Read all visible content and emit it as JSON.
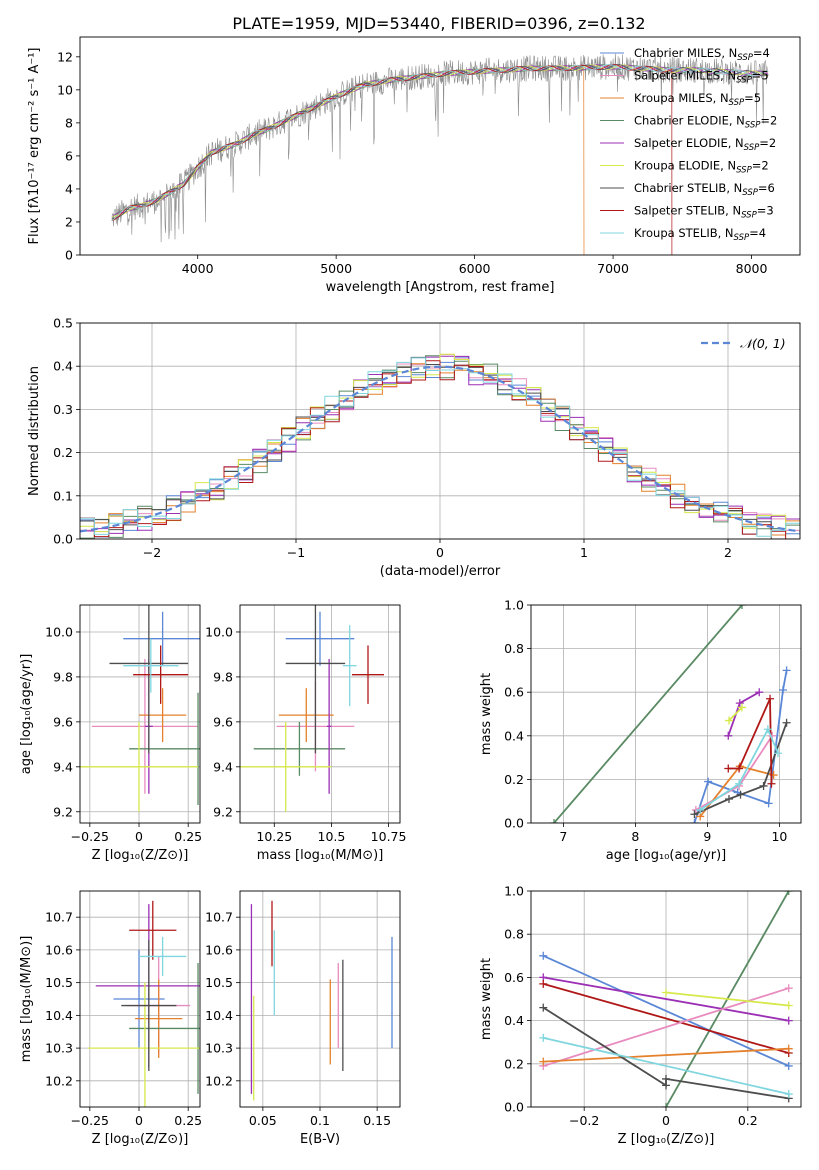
{
  "figure": {
    "title": "PLATE=1959, MJD=53440, FIBERID=0396, z=0.132"
  },
  "legend_spectrum": [
    {
      "label": "Chabrier MILES, N",
      "sub": "SSP",
      "tail": "=4",
      "color": "#5b87d6"
    },
    {
      "label": "Salpeter MILES, N",
      "sub": "SSP",
      "tail": "=5",
      "color": "#e88cbf"
    },
    {
      "label": "Kroupa MILES, N",
      "sub": "SSP",
      "tail": "=5",
      "color": "#e5802c"
    },
    {
      "label": "Chabrier ELODIE, N",
      "sub": "SSP",
      "tail": "=2",
      "color": "#5a8a63"
    },
    {
      "label": "Salpeter ELODIE, N",
      "sub": "SSP",
      "tail": "=2",
      "color": "#9b2fb5"
    },
    {
      "label": "Kroupa ELODIE, N",
      "sub": "SSP",
      "tail": "=2",
      "color": "#d6e84a"
    },
    {
      "label": "Chabrier STELIB, N",
      "sub": "SSP",
      "tail": "=6",
      "color": "#4d4d4d"
    },
    {
      "label": "Salpeter STELIB, N",
      "sub": "SSP",
      "tail": "=3",
      "color": "#b01818"
    },
    {
      "label": "Kroupa STELIB, N",
      "sub": "SSP",
      "tail": "=4",
      "color": "#7fd6de"
    }
  ],
  "chart_data": [
    {
      "id": "spectrum",
      "type": "line",
      "xlabel": "wavelength [Angstrom, rest frame]",
      "ylabel": "Flux [fλ10⁻¹⁷ erg cm⁻² s⁻¹ A⁻¹]",
      "xlim": [
        3150,
        8350
      ],
      "ylim": [
        0,
        13.2
      ],
      "xticks": [
        4000,
        5000,
        6000,
        7000,
        8000
      ],
      "yticks": [
        0,
        2,
        4,
        6,
        8,
        10,
        12
      ],
      "continuum": {
        "x": [
          3380,
          3500,
          3600,
          3700,
          3800,
          3900,
          4000,
          4100,
          4200,
          4300,
          4400,
          4500,
          4600,
          4800,
          5000,
          5200,
          5400,
          5600,
          5800,
          6000,
          6200,
          6400,
          6600,
          6800,
          7000,
          7200,
          7400,
          7600,
          7800,
          8000,
          8120
        ],
        "y": [
          2.2,
          2.8,
          3.0,
          3.3,
          3.8,
          4.3,
          5.3,
          6.2,
          6.5,
          6.8,
          7.3,
          7.6,
          8.0,
          8.8,
          9.6,
          10.3,
          10.6,
          10.8,
          11.0,
          11.1,
          11.2,
          11.3,
          11.3,
          11.35,
          11.4,
          11.3,
          11.2,
          11.2,
          11.1,
          11.0,
          11.0
        ]
      },
      "model_drops": [
        {
          "series": "Kroupa MILES",
          "x": 6790
        },
        {
          "series": "Salpeter STELIB",
          "x": 7425
        }
      ]
    },
    {
      "id": "residual_histogram",
      "type": "bar",
      "xlabel": "(data-model)/error",
      "ylabel": "Normed distribution",
      "xlim": [
        -2.5,
        2.5
      ],
      "ylim": [
        0,
        0.5
      ],
      "xticks": [
        -2,
        -1,
        0,
        1,
        2
      ],
      "yticks": [
        0.0,
        0.1,
        0.2,
        0.3,
        0.4,
        0.5
      ],
      "bin_width": 0.1,
      "reference": {
        "name": "𝒩(0, 1)",
        "mu": 0,
        "sigma": 1,
        "color": "#5b87d6"
      }
    },
    {
      "id": "age_vs_Z",
      "type": "scatter",
      "xlabel": "Z [log₁₀(Z/Z⊙)]",
      "ylabel": "age  [log₁₀(age/yr)]",
      "xlim": [
        -0.3,
        0.31
      ],
      "ylim": [
        9.15,
        10.12
      ],
      "xticks": [
        -0.25,
        0.0,
        0.25
      ],
      "yticks": [
        9.2,
        9.4,
        9.6,
        9.8,
        10.0
      ],
      "points": [
        {
          "x": 0.12,
          "xerr": 0.2,
          "y": 9.97,
          "yerr": 0.12,
          "color": "#5b87d6"
        },
        {
          "x": 0.03,
          "xerr": 0.27,
          "y": 9.58,
          "yerr": 0.3,
          "color": "#e88cbf"
        },
        {
          "x": 0.12,
          "xerr": 0.12,
          "y": 9.63,
          "yerr": 0.12,
          "color": "#e5802c"
        },
        {
          "x": 0.3,
          "xerr": 0.35,
          "y": 9.48,
          "yerr": 0.25,
          "color": "#5a8a63"
        },
        {
          "x": 0.05,
          "xerr": 0.02,
          "y": 9.58,
          "yerr": 0.3,
          "color": "#9b2fb5"
        },
        {
          "x": 0.0,
          "xerr": 0.3,
          "y": 9.4,
          "yerr": 0.2,
          "color": "#d6e84a"
        },
        {
          "x": 0.05,
          "xerr": 0.2,
          "y": 9.86,
          "yerr": 0.4,
          "color": "#4d4d4d"
        },
        {
          "x": 0.11,
          "xerr": 0.14,
          "y": 9.81,
          "yerr": 0.13,
          "color": "#b01818"
        },
        {
          "x": 0.06,
          "xerr": 0.14,
          "y": 9.85,
          "yerr": 0.12,
          "color": "#7fd6de"
        }
      ]
    },
    {
      "id": "age_vs_mass",
      "type": "scatter",
      "xlabel": "mass [log₁₀(M/M⊙)]",
      "ylabel": "",
      "xlim": [
        10.1,
        10.8
      ],
      "ylim": [
        9.15,
        10.12
      ],
      "xticks": [
        10.25,
        10.5,
        10.75
      ],
      "yticks": [
        9.2,
        9.4,
        9.6,
        9.8,
        10.0
      ],
      "points": [
        {
          "x": 10.45,
          "xerr": 0.15,
          "y": 9.97,
          "yerr": 0.12,
          "color": "#5b87d6"
        },
        {
          "x": 10.43,
          "xerr": 0.17,
          "y": 9.58,
          "yerr": 0.2,
          "color": "#e88cbf"
        },
        {
          "x": 10.39,
          "xerr": 0.12,
          "y": 9.63,
          "yerr": 0.12,
          "color": "#e5802c"
        },
        {
          "x": 10.36,
          "xerr": 0.2,
          "y": 9.48,
          "yerr": 0.12,
          "color": "#5a8a63"
        },
        {
          "x": 10.49,
          "xerr": 0.01,
          "y": 9.58,
          "yerr": 0.3,
          "color": "#9b2fb5"
        },
        {
          "x": 10.3,
          "xerr": 0.2,
          "y": 9.4,
          "yerr": 0.2,
          "color": "#d6e84a"
        },
        {
          "x": 10.43,
          "xerr": 0.13,
          "y": 9.86,
          "yerr": 0.4,
          "color": "#4d4d4d"
        },
        {
          "x": 10.66,
          "xerr": 0.07,
          "y": 9.81,
          "yerr": 0.13,
          "color": "#b01818"
        },
        {
          "x": 10.58,
          "xerr": 0.03,
          "y": 9.85,
          "yerr": 0.18,
          "color": "#7fd6de"
        }
      ]
    },
    {
      "id": "mass_weight_vs_age",
      "type": "line",
      "xlabel": "age  [log₁₀(age/yr)]",
      "ylabel": "mass weight",
      "xlim": [
        6.55,
        10.3
      ],
      "ylim": [
        0,
        1
      ],
      "xticks": [
        7,
        8,
        9,
        10
      ],
      "yticks": [
        0.0,
        0.2,
        0.4,
        0.6,
        0.8,
        1.0
      ],
      "series": [
        {
          "color": "#5a8a63",
          "x": [
            6.87,
            9.48
          ],
          "y": [
            0.0,
            1.0
          ]
        },
        {
          "color": "#5b87d6",
          "x": [
            8.82,
            9.01,
            9.42,
            9.85,
            10.05,
            10.1
          ],
          "y": [
            0.0,
            0.19,
            0.14,
            0.09,
            0.61,
            0.7
          ]
        },
        {
          "color": "#e88cbf",
          "x": [
            8.84,
            9.44,
            9.9
          ],
          "y": [
            0.06,
            0.17,
            0.4
          ]
        },
        {
          "color": "#e5802c",
          "x": [
            8.9,
            9.45,
            9.92
          ],
          "y": [
            0.03,
            0.26,
            0.22
          ]
        },
        {
          "color": "#9b2fb5",
          "x": [
            9.29,
            9.45,
            9.72
          ],
          "y": [
            0.4,
            0.55,
            0.6
          ]
        },
        {
          "color": "#d6e84a",
          "x": [
            9.3,
            9.48
          ],
          "y": [
            0.47,
            0.53
          ]
        },
        {
          "color": "#4d4d4d",
          "x": [
            8.82,
            9.3,
            9.46,
            9.78,
            10.1
          ],
          "y": [
            0.04,
            0.11,
            0.13,
            0.17,
            0.46
          ]
        },
        {
          "color": "#b01818",
          "x": [
            9.29,
            9.44,
            9.87,
            9.89
          ],
          "y": [
            0.25,
            0.25,
            0.57,
            0.18
          ]
        },
        {
          "color": "#7fd6de",
          "x": [
            8.9,
            9.44,
            9.84,
            9.98
          ],
          "y": [
            0.06,
            0.18,
            0.43,
            0.32
          ]
        }
      ]
    },
    {
      "id": "mass_vs_Z",
      "type": "scatter",
      "xlabel": "Z [log₁₀(Z/Z⊙)]",
      "ylabel": "mass [log₁₀(M/M⊙)]",
      "xlim": [
        -0.3,
        0.31
      ],
      "ylim": [
        10.12,
        10.78
      ],
      "xticks": [
        -0.25,
        0.0,
        0.25
      ],
      "yticks": [
        10.2,
        10.3,
        10.4,
        10.5,
        10.6,
        10.7
      ],
      "points": [
        {
          "x": 0.0,
          "xerr": 0.13,
          "y": 10.45,
          "yerr": 0.15,
          "color": "#5b87d6"
        },
        {
          "x": 0.1,
          "xerr": 0.16,
          "y": 10.43,
          "yerr": 0.15,
          "color": "#e88cbf"
        },
        {
          "x": 0.1,
          "xerr": 0.12,
          "y": 10.39,
          "yerr": 0.12,
          "color": "#e5802c"
        },
        {
          "x": 0.3,
          "xerr": 0.35,
          "y": 10.36,
          "yerr": 0.2,
          "color": "#5a8a63"
        },
        {
          "x": 0.05,
          "xerr": 0.27,
          "y": 10.49,
          "yerr": 0.25,
          "color": "#9b2fb5"
        },
        {
          "x": 0.03,
          "xerr": 0.29,
          "y": 10.3,
          "yerr": 0.2,
          "color": "#d6e84a"
        },
        {
          "x": 0.05,
          "xerr": 0.14,
          "y": 10.43,
          "yerr": 0.2,
          "color": "#4d4d4d"
        },
        {
          "x": 0.07,
          "xerr": 0.12,
          "y": 10.66,
          "yerr": 0.09,
          "color": "#b01818"
        },
        {
          "x": 0.12,
          "xerr": 0.12,
          "y": 10.58,
          "yerr": 0.06,
          "color": "#7fd6de"
        }
      ]
    },
    {
      "id": "mass_vs_EBV",
      "type": "scatter",
      "xlabel": "E(B-V)",
      "ylabel": "",
      "xlim": [
        0.03,
        0.17
      ],
      "ylim": [
        10.12,
        10.78
      ],
      "xticks": [
        0.05,
        0.1,
        0.15
      ],
      "yticks": [
        10.2,
        10.3,
        10.4,
        10.5,
        10.6,
        10.7
      ],
      "points": [
        {
          "x": 0.163,
          "y": 10.47,
          "yerr": 0.17,
          "color": "#5b87d6"
        },
        {
          "x": 0.116,
          "y": 10.43,
          "yerr": 0.13,
          "color": "#e88cbf"
        },
        {
          "x": 0.109,
          "y": 10.38,
          "yerr": 0.13,
          "color": "#e5802c"
        },
        {
          "x": 0.04,
          "y": 10.45,
          "yerr": 0.29,
          "color": "#9b2fb5"
        },
        {
          "x": 0.042,
          "y": 10.3,
          "yerr": 0.16,
          "color": "#d6e84a"
        },
        {
          "x": 0.12,
          "y": 10.4,
          "yerr": 0.17,
          "color": "#4d4d4d"
        },
        {
          "x": 0.058,
          "y": 10.65,
          "yerr": 0.1,
          "color": "#b01818"
        },
        {
          "x": 0.06,
          "y": 10.53,
          "yerr": 0.13,
          "color": "#7fd6de"
        }
      ]
    },
    {
      "id": "mass_weight_vs_Z",
      "type": "line",
      "xlabel": "Z [log₁₀(Z/Z⊙)]",
      "ylabel": "mass weight",
      "xlim": [
        -0.33,
        0.33
      ],
      "ylim": [
        0,
        1
      ],
      "xticks": [
        -0.2,
        0.0,
        0.2
      ],
      "yticks": [
        0.0,
        0.2,
        0.4,
        0.6,
        0.8,
        1.0
      ],
      "series": [
        {
          "color": "#5a8a63",
          "x": [
            0.0,
            0.3
          ],
          "y": [
            0.0,
            1.0
          ]
        },
        {
          "color": "#5b87d6",
          "x": [
            -0.3,
            0.3
          ],
          "y": [
            0.7,
            0.19
          ]
        },
        {
          "color": "#9b2fb5",
          "x": [
            -0.3,
            0.3
          ],
          "y": [
            0.6,
            0.4
          ]
        },
        {
          "color": "#b01818",
          "x": [
            -0.3,
            0.3
          ],
          "y": [
            0.57,
            0.25
          ]
        },
        {
          "color": "#e88cbf",
          "x": [
            -0.3,
            0.3
          ],
          "y": [
            0.19,
            0.55
          ]
        },
        {
          "color": "#e5802c",
          "x": [
            -0.3,
            0.3
          ],
          "y": [
            0.21,
            0.27
          ]
        },
        {
          "color": "#d6e84a",
          "x": [
            0.0,
            0.3
          ],
          "y": [
            0.53,
            0.47
          ]
        },
        {
          "color": "#4d4d4d",
          "x": [
            -0.3,
            0.0,
            0.0,
            0.3
          ],
          "y": [
            0.46,
            0.1,
            0.13,
            0.04
          ]
        },
        {
          "color": "#7fd6de",
          "x": [
            -0.3,
            0.3
          ],
          "y": [
            0.32,
            0.06
          ]
        }
      ]
    }
  ]
}
